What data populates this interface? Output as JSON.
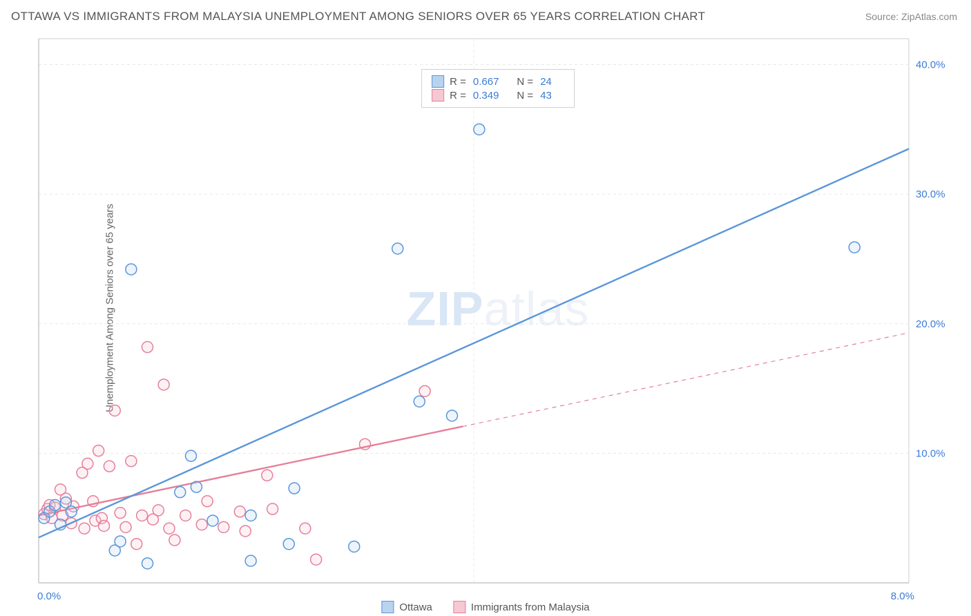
{
  "title": "OTTAWA VS IMMIGRANTS FROM MALAYSIA UNEMPLOYMENT AMONG SENIORS OVER 65 YEARS CORRELATION CHART",
  "source": "Source: ZipAtlas.com",
  "watermark_a": "ZIP",
  "watermark_b": "atlas",
  "ylabel": "Unemployment Among Seniors over 65 years",
  "chart": {
    "type": "scatter",
    "background_color": "#ffffff",
    "grid_color": "#e8e8e8",
    "grid_dash": "4,4",
    "axis_color": "#cccccc",
    "tick_label_color": "#3a7bd5",
    "tick_fontsize": 15,
    "xlim": [
      0,
      8
    ],
    "ylim": [
      0,
      42
    ],
    "x_ticks": [
      0,
      8
    ],
    "x_tick_labels": [
      "0.0%",
      "8.0%"
    ],
    "y_ticks": [
      10,
      20,
      30,
      40
    ],
    "y_tick_labels": [
      "10.0%",
      "20.0%",
      "30.0%",
      "40.0%"
    ],
    "marker_radius": 8,
    "marker_fill_opacity": 0.25,
    "marker_stroke_width": 1.5,
    "series": [
      {
        "name": "Ottawa",
        "color": "#5a96d9",
        "fill": "#b9d3ee",
        "R": "0.667",
        "N": "24",
        "trend": {
          "x1": 0.0,
          "y1": 3.5,
          "x2": 8.0,
          "y2": 33.5,
          "solid_until_x": 8.0,
          "width": 2.4
        },
        "points": [
          [
            0.05,
            5.0
          ],
          [
            0.1,
            5.5
          ],
          [
            0.15,
            6.0
          ],
          [
            0.2,
            4.5
          ],
          [
            0.25,
            6.2
          ],
          [
            0.3,
            5.5
          ],
          [
            0.7,
            2.5
          ],
          [
            0.75,
            3.2
          ],
          [
            0.85,
            24.2
          ],
          [
            1.0,
            1.5
          ],
          [
            1.3,
            7.0
          ],
          [
            1.4,
            9.8
          ],
          [
            1.45,
            7.4
          ],
          [
            1.6,
            4.8
          ],
          [
            1.95,
            1.7
          ],
          [
            1.95,
            5.2
          ],
          [
            2.3,
            3.0
          ],
          [
            2.35,
            7.3
          ],
          [
            2.9,
            2.8
          ],
          [
            3.3,
            25.8
          ],
          [
            3.5,
            14.0
          ],
          [
            3.8,
            12.9
          ],
          [
            4.05,
            35.0
          ],
          [
            7.5,
            25.9
          ]
        ]
      },
      {
        "name": "Immigrants from Malaysia",
        "color": "#e57f9a",
        "fill": "#f6c8d4",
        "R": "0.349",
        "N": "43",
        "trend": {
          "x1": 0.0,
          "y1": 5.2,
          "x2": 8.0,
          "y2": 19.3,
          "solid_until_x": 3.9,
          "width": 2.4
        },
        "points": [
          [
            0.05,
            5.3
          ],
          [
            0.08,
            5.7
          ],
          [
            0.1,
            6.0
          ],
          [
            0.12,
            5.0
          ],
          [
            0.15,
            5.8
          ],
          [
            0.2,
            7.2
          ],
          [
            0.22,
            5.2
          ],
          [
            0.25,
            6.5
          ],
          [
            0.3,
            4.6
          ],
          [
            0.32,
            5.9
          ],
          [
            0.4,
            8.5
          ],
          [
            0.42,
            4.2
          ],
          [
            0.45,
            9.2
          ],
          [
            0.5,
            6.3
          ],
          [
            0.52,
            4.8
          ],
          [
            0.55,
            10.2
          ],
          [
            0.58,
            5.0
          ],
          [
            0.6,
            4.4
          ],
          [
            0.65,
            9.0
          ],
          [
            0.7,
            13.3
          ],
          [
            0.75,
            5.4
          ],
          [
            0.8,
            4.3
          ],
          [
            0.85,
            9.4
          ],
          [
            0.9,
            3.0
          ],
          [
            0.95,
            5.2
          ],
          [
            1.0,
            18.2
          ],
          [
            1.05,
            4.9
          ],
          [
            1.1,
            5.6
          ],
          [
            1.15,
            15.3
          ],
          [
            1.2,
            4.2
          ],
          [
            1.25,
            3.3
          ],
          [
            1.35,
            5.2
          ],
          [
            1.5,
            4.5
          ],
          [
            1.55,
            6.3
          ],
          [
            1.7,
            4.3
          ],
          [
            1.85,
            5.5
          ],
          [
            1.9,
            4.0
          ],
          [
            2.1,
            8.3
          ],
          [
            2.15,
            5.7
          ],
          [
            2.45,
            4.2
          ],
          [
            2.55,
            1.8
          ],
          [
            3.0,
            10.7
          ],
          [
            3.55,
            14.8
          ]
        ]
      }
    ]
  },
  "legend_top": {
    "r_label": "R =",
    "n_label": "N ="
  },
  "legend_bottom": {
    "items": [
      "Ottawa",
      "Immigrants from Malaysia"
    ]
  }
}
